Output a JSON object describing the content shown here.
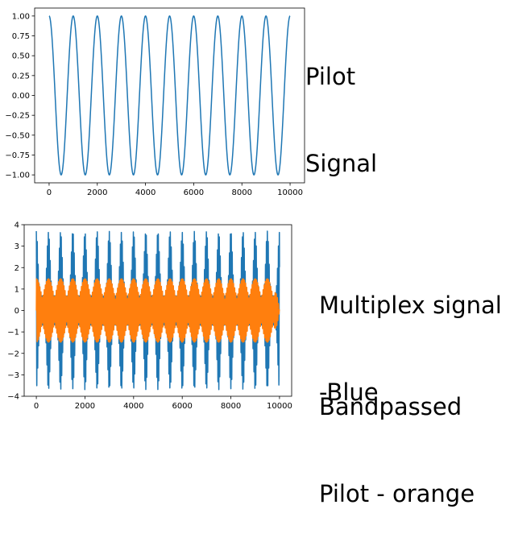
{
  "annotations": {
    "pilot_line1": "Pilot",
    "pilot_line2": "Signal",
    "mux_line1": "Multiplex signal",
    "mux_line2": "-Blue",
    "bp_line1": "Bandpassed",
    "bp_line2": "Pilot - orange"
  },
  "colors": {
    "blue": "#1f77b4",
    "orange": "#ff7f0e"
  },
  "chart_data": [
    {
      "type": "line",
      "title": "",
      "xlabel": "",
      "ylabel": "",
      "xlim": [
        -600,
        10600
      ],
      "ylim": [
        -1.1,
        1.1
      ],
      "xticks": [
        0,
        2000,
        4000,
        6000,
        8000,
        10000
      ],
      "xtick_labels": [
        "0",
        "2000",
        "4000",
        "6000",
        "8000",
        "10000"
      ],
      "yticks": [
        -1.0,
        -0.75,
        -0.5,
        -0.25,
        0.0,
        0.25,
        0.5,
        0.75,
        1.0
      ],
      "ytick_labels": [
        "−1.00",
        "−0.75",
        "−0.50",
        "−0.25",
        "0.00",
        "0.25",
        "0.50",
        "0.75",
        "1.00"
      ],
      "grid": false,
      "series": [
        {
          "color": "#1f77b4",
          "function": "cosine",
          "amplitude": 1.0,
          "period": 1000,
          "x_start": 0,
          "x_end": 10000
        }
      ]
    },
    {
      "type": "line",
      "title": "",
      "xlabel": "",
      "ylabel": "",
      "xlim": [
        -500,
        10500
      ],
      "ylim": [
        -4.0,
        4.0
      ],
      "xticks": [
        0,
        2000,
        4000,
        6000,
        8000,
        10000
      ],
      "xtick_labels": [
        "0",
        "2000",
        "4000",
        "6000",
        "8000",
        "10000"
      ],
      "yticks": [
        -4,
        -3,
        -2,
        -1,
        0,
        1,
        2,
        3,
        4
      ],
      "ytick_labels": [
        "−4",
        "−3",
        "−2",
        "−1",
        "0",
        "1",
        "2",
        "3",
        "4"
      ],
      "grid": false,
      "series": [
        {
          "color": "#1f77b4",
          "description_peak_amplitude": 3.7,
          "envelope_period": 1000,
          "x_start": 0,
          "x_end": 10000
        },
        {
          "color": "#ff7f0e",
          "description_peak_amplitude": 1.5,
          "envelope_period": 1000,
          "x_start": 0,
          "x_end": 10000
        }
      ]
    }
  ]
}
